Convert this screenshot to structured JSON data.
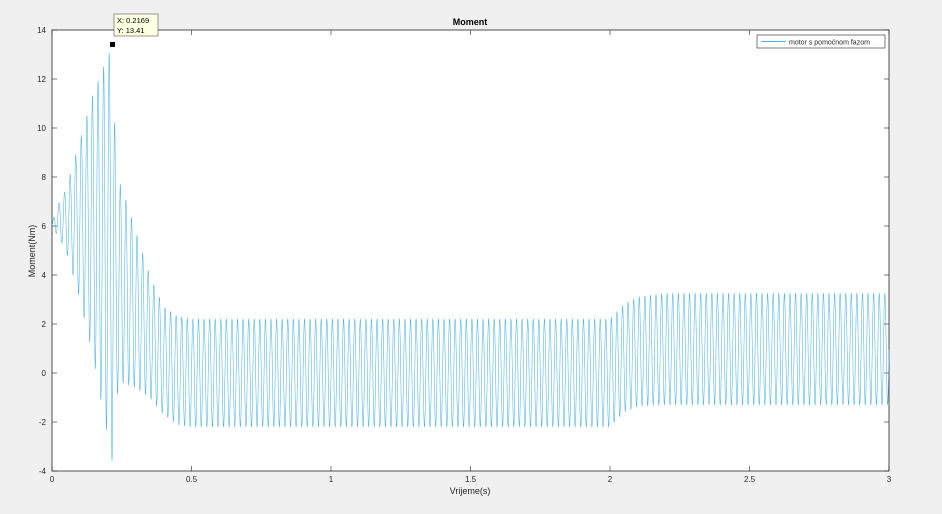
{
  "chart_data": {
    "type": "line",
    "title": "Moment",
    "xlabel": "Vrijeme(s)",
    "ylabel": "Moment(Nm)",
    "xlim": [
      0,
      3
    ],
    "ylim": [
      -4,
      14
    ],
    "xticks": [
      0,
      0.5,
      1,
      1.5,
      2,
      2.5,
      3
    ],
    "xtick_labels": [
      "0",
      "0.5",
      "1",
      "1.5",
      "2",
      "2.5",
      "3"
    ],
    "yticks": [
      -4,
      -2,
      0,
      2,
      4,
      6,
      8,
      10,
      12,
      14
    ],
    "ytick_labels": [
      "-4",
      "-2",
      "0",
      "2",
      "4",
      "6",
      "8",
      "10",
      "12",
      "14"
    ],
    "grid": false,
    "legend_position": "top-right",
    "series": [
      {
        "name": "motor s pomoćnom fazom",
        "color": "#4db3e6",
        "oscillation_hz": 50,
        "envelope": [
          {
            "t": 0.0,
            "max": 6.0,
            "min": 6.0
          },
          {
            "t": 0.01,
            "max": 6.6,
            "min": 5.8
          },
          {
            "t": 0.05,
            "max": 7.5,
            "min": 5.0
          },
          {
            "t": 0.1,
            "max": 9.5,
            "min": 3.0
          },
          {
            "t": 0.15,
            "max": 11.5,
            "min": 0.5
          },
          {
            "t": 0.2169,
            "max": 13.41,
            "min": -3.7
          },
          {
            "t": 0.23,
            "max": 8.0,
            "min": -1.0
          },
          {
            "t": 0.25,
            "max": 7.6,
            "min": -0.4
          },
          {
            "t": 0.3,
            "max": 5.8,
            "min": -0.6
          },
          {
            "t": 0.35,
            "max": 4.0,
            "min": -1.0
          },
          {
            "t": 0.4,
            "max": 2.7,
            "min": -1.7
          },
          {
            "t": 0.45,
            "max": 2.3,
            "min": -2.1
          },
          {
            "t": 0.5,
            "max": 2.2,
            "min": -2.2
          },
          {
            "t": 2.0,
            "max": 2.2,
            "min": -2.2
          },
          {
            "t": 2.05,
            "max": 2.8,
            "min": -1.6
          },
          {
            "t": 2.1,
            "max": 3.1,
            "min": -1.35
          },
          {
            "t": 2.2,
            "max": 3.25,
            "min": -1.3
          },
          {
            "t": 3.0,
            "max": 3.25,
            "min": -1.3
          }
        ]
      }
    ],
    "datatip": {
      "x": 0.2169,
      "y": 13.41,
      "x_label": "X: 0.2169",
      "y_label": "Y: 13.41"
    }
  }
}
